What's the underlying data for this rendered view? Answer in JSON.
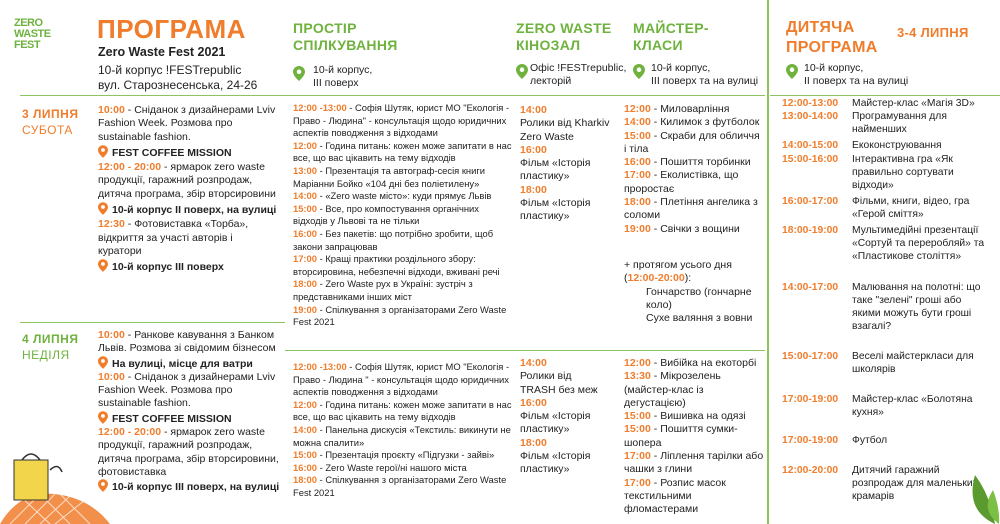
{
  "logo": {
    "line1": "ZERO",
    "line2": "WASTE",
    "line3": "FEST"
  },
  "header": {
    "title": "ПРОГРАМА",
    "subtitle": "Zero Waste Fest 2021",
    "address_line1": "10-й корпус !FESTrepublic",
    "address_line2": "вул. Старознесенська, 24-26"
  },
  "columns": {
    "space": {
      "title1": "ПРОСТІР",
      "title2": "СПІЛКУВАННЯ",
      "loc1": "10-й корпус,",
      "loc2": "ІІІ поверх"
    },
    "cinema": {
      "title1": "ZERO WASTE",
      "title2": "КІНОЗАЛ",
      "loc1": "Офіс !FESTrepublic,",
      "loc2": "лекторій"
    },
    "masters": {
      "title1": "МАЙСТЕР-",
      "title2": "КЛАСИ",
      "loc1": "10-й корпус,",
      "loc2": "ІІІ поверх та на вулиці"
    },
    "kids": {
      "title1": "ДИТЯЧА",
      "title2": "ПРОГРАМА",
      "dates": "3-4 ЛИПНЯ",
      "loc1": "10-й корпус,",
      "loc2": "ІІ поверх та на вулиці"
    }
  },
  "day1": {
    "date": "3 ЛИПНЯ",
    "weekday": "СУБОТА",
    "main": [
      {
        "time": "10:00",
        "text": " - Сніданок з дизайнерами Lviv Fashion Week. Розмова про sustainable fashion."
      },
      {
        "place": "FEST COFFEE MISSION"
      },
      {
        "time": "12:00 - 20:00",
        "text": " - ярмарок zero waste продукції, гаражний розпродаж, дитяча програма, збір вторсировини"
      },
      {
        "place": "10-й корпус ІІ поверх, на вулиці"
      },
      {
        "time": "12:30",
        "text": " - Фотовиставка «Торба», відкриття за участі авторів і куратори"
      },
      {
        "place": "10-й корпус ІІІ поверх"
      }
    ],
    "space": [
      {
        "time": "12:00 -13:00",
        "text": " - Софія Шутяк, юрист МО \"Екологія - Право - Людина\" - консультація щодо юридичних аспектів поводження з відходами"
      },
      {
        "time": "12:00",
        "text": " - Година питань: кожен може запитати в нас все, що вас цікавить на тему відходів"
      },
      {
        "time": "13:00",
        "text": " - Презентація та автограф-сесія книги Маріанни Бойко «104 дні без поліетилену»"
      },
      {
        "time": "14:00",
        "text": " - «Zero waste місто»: куди прямує Львів"
      },
      {
        "time": "15:00",
        "text": " - Все, про компостування органічних відходів у Львові та не тільки"
      },
      {
        "time": "16:00",
        "text": " - Без пакетів: що потрібно зробити, щоб закони запрацював"
      },
      {
        "time": "17:00",
        "text": " - Кращі практики роздільного збору: вторсировина, небезпечні відходи, вживані речі"
      },
      {
        "time": "18:00",
        "text": " - Zero Waste рух в Україні: зустріч з представниками інших міст"
      },
      {
        "time": "19:00",
        "text": " - Спілкування з організаторами Zero Waste Fest 2021"
      }
    ],
    "cinema": [
      {
        "time": "14:00",
        "text": "Ролики від Kharkiv Zero Waste"
      },
      {
        "time": "16:00",
        "text": "Фільм «Історія пластику»"
      },
      {
        "time": "18:00",
        "text": "Фільм «Історія пластику»"
      }
    ],
    "masters": [
      {
        "time": "12:00",
        "text": " - Миловарління"
      },
      {
        "time": "14:00",
        "text": " - Килимок з футболок"
      },
      {
        "time": "15:00",
        "text": " - Скраби для обличчя і тіла"
      },
      {
        "time": "16:00",
        "text": " - Пошиття торбинки"
      },
      {
        "time": "17:00",
        "text": " - Еколистівка, що проростає"
      },
      {
        "time": "18:00",
        "text": " - Плетіння ангелика з соломи"
      },
      {
        "time": "19:00",
        "text": " - Свічки з вощини"
      }
    ],
    "all_day_label": "+ протягом усього дня",
    "all_day_time": "12:00-20:00",
    "all_day_items": [
      "Гончарство (гончарне коло)",
      "Сухе валяння з вовни"
    ]
  },
  "day2": {
    "date": "4 ЛИПНЯ",
    "weekday": "НЕДІЛЯ",
    "main": [
      {
        "time": "10:00",
        "text": " - Ранкове кавування з Банком Львів. Розмова зі свідомим бізнесом"
      },
      {
        "place": "На вулиці, місце для ватри"
      },
      {
        "time": "10:00",
        "text": " - Сніданок з дизайнерами Lviv Fashion Week. Розмова про sustainable fashion."
      },
      {
        "place": "FEST COFFEE MISSION"
      },
      {
        "time": "12:00 - 20:00",
        "text": " - ярмарок zero waste продукції, гаражний розпродаж, дитяча програма, збір вторсировини, фотовиставка"
      },
      {
        "place": "10-й корпус ІІІ поверх, на вулиці"
      }
    ],
    "space": [
      {
        "time": "12:00 -13:00",
        "text": " - Софія Шутяк, юрист МО \"Екологія - Право - Людина \" - консультація щодо юридичних аспектів поводження з відходами"
      },
      {
        "time": "12:00",
        "text": " - Година питань: кожен може запитати в нас все, що вас цікавить на тему відходів"
      },
      {
        "time": "14:00",
        "text": " - Панельна дискусія «Текстиль: викинути не можна спалити»"
      },
      {
        "time": "15:00",
        "text": " - Презентація проєкту «Підгузки - зайві»"
      },
      {
        "time": "16:00",
        "text": " - Zero Waste герої/ні нашого міста"
      },
      {
        "time": "18:00",
        "text": " - Спілкування з організаторами Zero Waste Fest 2021"
      }
    ],
    "cinema": [
      {
        "time": "14:00",
        "text": "Ролики від TRASH без меж"
      },
      {
        "time": "16:00",
        "text": "Фільм «Історія пластику»"
      },
      {
        "time": "18:00",
        "text": "Фільм «Історія пластику»"
      }
    ],
    "masters": [
      {
        "time": "12:00",
        "text": " - Вибійка на екоторбі"
      },
      {
        "time": "13:30",
        "text": " - Мікрозелень (майстер-клас із дегустацією)"
      },
      {
        "time": "15:00",
        "text": " - Вишивка на одязі"
      },
      {
        "time": "15:00",
        "text": " - Пошиття сумки-шопера"
      },
      {
        "time": "17:00",
        "text": " - Ліплення тарілки або чашки з глини"
      },
      {
        "time": "17:00",
        "text": " - Розпис масок текстильними фломастерами"
      }
    ]
  },
  "kids": [
    {
      "time": "12:00-13:00",
      "text": "Майстер-клас «Магія 3D»"
    },
    {
      "time": "13:00-14:00",
      "text": "Програмування для найменших"
    },
    {
      "time": "14:00-15:00",
      "text": "Екоконструювання"
    },
    {
      "time": "15:00-16:00",
      "text": "Інтерактивна гра «Як правильно сортувати відходи»"
    },
    {
      "time": "16:00-17:00",
      "text": "Фільми, книги, відео, гра «Герой сміття»"
    },
    {
      "time": "18:00-19:00",
      "text": "Мультимедійні презентації «Сортуй та переробляй» та «Пластикове століття»"
    },
    {
      "time": "14:00-17:00",
      "text": "Малювання на полотні: що таке \"зелені\" гроші або якими можуть бути гроші взагалі?"
    },
    {
      "time": "15:00-17:00",
      "text": "Веселі майстеркласи для школярів"
    },
    {
      "time": "17:00-19:00",
      "text": "Майстер-клас «Болотяна кухня»"
    },
    {
      "time": "17:00-19:00",
      "text": "Футбол"
    },
    {
      "time": "12:00-20:00",
      "text": "Дитячий гаражний розпродаж для маленьких крамарів"
    }
  ],
  "colors": {
    "orange": "#f07d2c",
    "green": "#6fb23e",
    "line": "#8cc45e"
  }
}
